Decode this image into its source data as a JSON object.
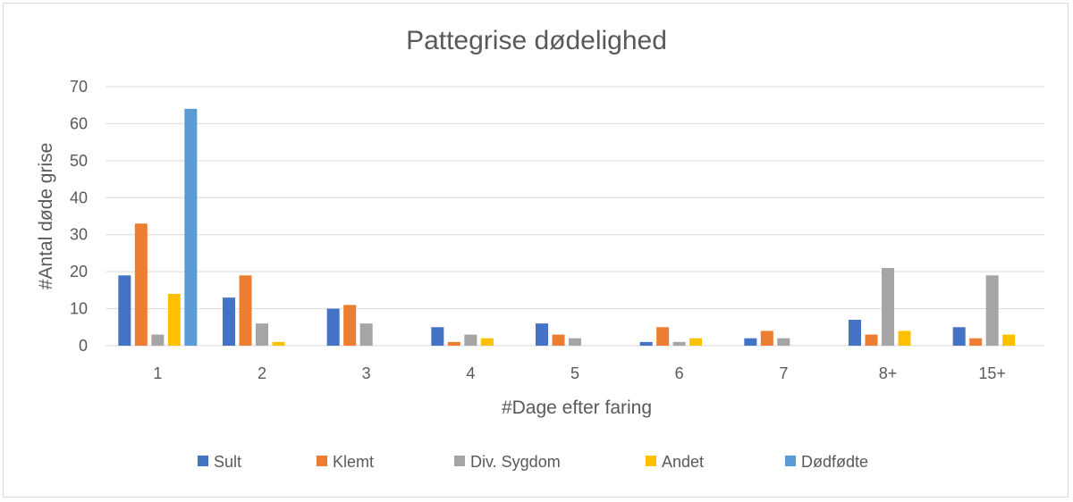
{
  "chart_data": {
    "type": "bar",
    "title": "Pattegrise dødelighed",
    "xlabel": "#Dage efter faring",
    "ylabel": "#Antal døde grise",
    "ylim": [
      0,
      70
    ],
    "yticks": [
      0,
      10,
      20,
      30,
      40,
      50,
      60,
      70
    ],
    "grid": true,
    "legend_position": "bottom",
    "categories": [
      "1",
      "2",
      "3",
      "4",
      "5",
      "6",
      "7",
      "8+",
      "15+"
    ],
    "series": [
      {
        "name": "Sult",
        "color": "#4472c4",
        "values": [
          19,
          13,
          10,
          5,
          6,
          1,
          2,
          7,
          5
        ]
      },
      {
        "name": "Klemt",
        "color": "#ed7d31",
        "values": [
          33,
          19,
          11,
          1,
          3,
          5,
          4,
          3,
          2
        ]
      },
      {
        "name": "Div. Sygdom",
        "color": "#a5a5a5",
        "values": [
          3,
          6,
          6,
          3,
          2,
          1,
          2,
          21,
          19
        ]
      },
      {
        "name": "Andet",
        "color": "#ffc000",
        "values": [
          14,
          1,
          0,
          2,
          0,
          2,
          0,
          4,
          3
        ]
      },
      {
        "name": "Dødfødte",
        "color": "#5b9bd5",
        "values": [
          64,
          0,
          0,
          0,
          0,
          0,
          0,
          0,
          0
        ]
      }
    ]
  }
}
